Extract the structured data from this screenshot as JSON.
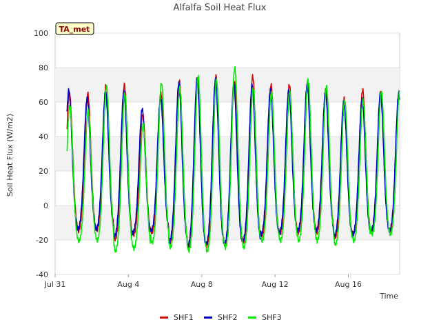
{
  "chart_data": {
    "type": "line",
    "title": "Alfalfa Soil Heat Flux",
    "xlabel": "Time",
    "ylabel": "Soil Heat Flux (W/m2)",
    "ylim": [
      -40,
      100
    ],
    "yticks": [
      -40,
      -20,
      0,
      20,
      40,
      60,
      80,
      100
    ],
    "xlim_days": [
      0,
      18.8
    ],
    "xticks": [
      {
        "day": 0,
        "label": "Jul 31"
      },
      {
        "day": 4,
        "label": "Aug 4"
      },
      {
        "day": 8,
        "label": "Aug 8"
      },
      {
        "day": 12,
        "label": "Aug 12"
      },
      {
        "day": 16,
        "label": "Aug 16"
      }
    ],
    "badge": "TA_met",
    "legend_position": "bottom-center",
    "grid": true,
    "series": [
      {
        "name": "SHF1",
        "color": "#dd0000",
        "peak_hour": 0.58,
        "daily_max": [
          65,
          65,
          70,
          70,
          53,
          65,
          72,
          74,
          75,
          72,
          75,
          70,
          70,
          72,
          68,
          62,
          67,
          66
        ],
        "daily_min": [
          -15,
          -16,
          -16,
          -21,
          -18,
          -17,
          -23,
          -26,
          -25,
          -25,
          -23,
          -19,
          -18,
          -17,
          -17,
          -20,
          -18,
          -17
        ]
      },
      {
        "name": "SHF2",
        "color": "#0000cc",
        "peak_hour": 0.55,
        "daily_max": [
          67,
          62,
          66,
          66,
          56,
          63,
          71,
          74,
          73,
          70,
          70,
          67,
          67,
          70,
          66,
          60,
          62,
          65
        ],
        "daily_min": [
          -14,
          -15,
          -15,
          -19,
          -17,
          -16,
          -22,
          -25,
          -24,
          -24,
          -22,
          -18,
          -17,
          -16,
          -16,
          -19,
          -18,
          -16
        ]
      },
      {
        "name": "SHF3",
        "color": "#00ee00",
        "peak_hour": 0.6,
        "daily_max": [
          58,
          55,
          69,
          65,
          47,
          71,
          68,
          75,
          73,
          80,
          68,
          65,
          66,
          73,
          69,
          61,
          61,
          66
        ],
        "daily_min": [
          -23,
          -22,
          -22,
          -28,
          -26,
          -23,
          -26,
          -28,
          -28,
          -26,
          -26,
          -22,
          -22,
          -22,
          -22,
          -24,
          -22,
          -18
        ]
      }
    ]
  }
}
